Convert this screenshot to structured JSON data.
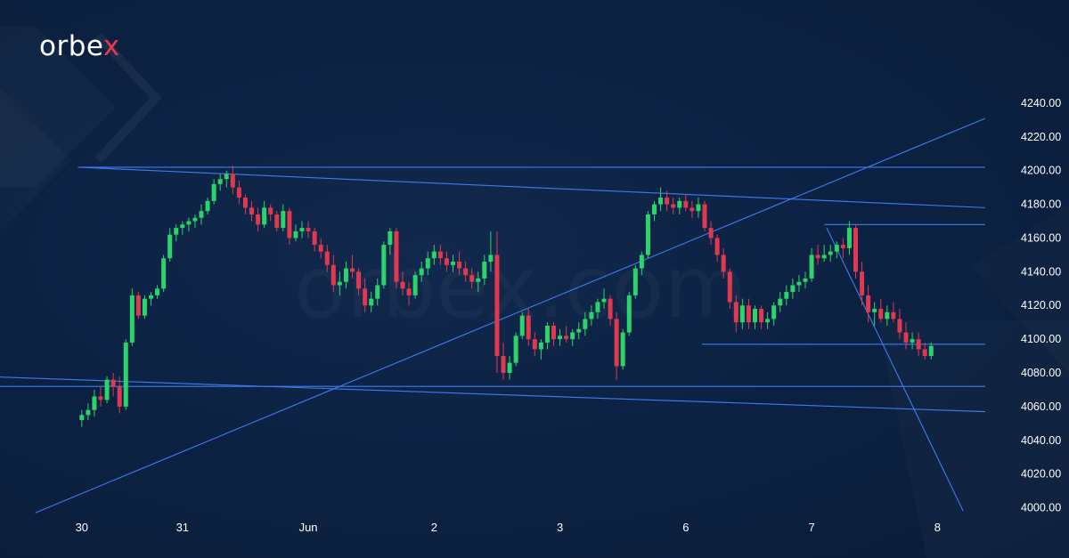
{
  "brand": {
    "prefix": "orbe",
    "x": "x"
  },
  "watermark": "orbex.com",
  "colors": {
    "bull": "#2bd46a",
    "bear": "#e0384e",
    "line": "#3d7cf0",
    "background": "#0b1f3d",
    "text": "#ffffff"
  },
  "chart_data": {
    "type": "candlestick",
    "title": "",
    "xlabel": "",
    "ylabel": "",
    "ylim": [
      3995,
      4250
    ],
    "y_ticks": [
      "4000.00",
      "4020.00",
      "4040.00",
      "4060.00",
      "4080.00",
      "4100.00",
      "4120.00",
      "4140.00",
      "4160.00",
      "4180.00",
      "4200.00",
      "4220.00",
      "4240.00"
    ],
    "x_ticks": [
      {
        "label": "30",
        "bar": 0
      },
      {
        "label": "31",
        "bar": 16
      },
      {
        "label": "Jun",
        "bar": 36
      },
      {
        "label": "2",
        "bar": 56
      },
      {
        "label": "3",
        "bar": 76
      },
      {
        "label": "6",
        "bar": 96
      },
      {
        "label": "7",
        "bar": 116
      },
      {
        "label": "8",
        "bar": 136
      }
    ],
    "x_range": [
      -13,
      147
    ],
    "candles": [
      [
        4052,
        4058,
        4048,
        4055
      ],
      [
        4055,
        4062,
        4052,
        4058
      ],
      [
        4058,
        4070,
        4054,
        4066
      ],
      [
        4066,
        4072,
        4060,
        4064
      ],
      [
        4064,
        4078,
        4062,
        4076
      ],
      [
        4076,
        4080,
        4066,
        4072
      ],
      [
        4072,
        4078,
        4056,
        4060
      ],
      [
        4060,
        4100,
        4058,
        4098
      ],
      [
        4098,
        4130,
        4096,
        4126
      ],
      [
        4126,
        4128,
        4112,
        4114
      ],
      [
        4114,
        4126,
        4112,
        4124
      ],
      [
        4124,
        4128,
        4120,
        4126
      ],
      [
        4126,
        4132,
        4124,
        4130
      ],
      [
        4130,
        4150,
        4128,
        4148
      ],
      [
        4148,
        4166,
        4146,
        4162
      ],
      [
        4162,
        4168,
        4158,
        4166
      ],
      [
        4166,
        4170,
        4162,
        4168
      ],
      [
        4168,
        4172,
        4164,
        4170
      ],
      [
        4170,
        4174,
        4166,
        4172
      ],
      [
        4172,
        4180,
        4168,
        4176
      ],
      [
        4176,
        4184,
        4174,
        4182
      ],
      [
        4182,
        4195,
        4180,
        4192
      ],
      [
        4192,
        4198,
        4188,
        4195
      ],
      [
        4195,
        4200,
        4190,
        4198
      ],
      [
        4198,
        4203,
        4186,
        4190
      ],
      [
        4190,
        4194,
        4180,
        4184
      ],
      [
        4184,
        4186,
        4174,
        4178
      ],
      [
        4178,
        4182,
        4170,
        4174
      ],
      [
        4174,
        4178,
        4164,
        4168
      ],
      [
        4168,
        4182,
        4166,
        4178
      ],
      [
        4178,
        4180,
        4170,
        4174
      ],
      [
        4174,
        4176,
        4164,
        4166
      ],
      [
        4166,
        4180,
        4164,
        4176
      ],
      [
        4176,
        4178,
        4156,
        4160
      ],
      [
        4160,
        4168,
        4158,
        4164
      ],
      [
        4164,
        4170,
        4160,
        4166
      ],
      [
        4166,
        4170,
        4160,
        4164
      ],
      [
        4164,
        4166,
        4152,
        4156
      ],
      [
        4156,
        4160,
        4148,
        4152
      ],
      [
        4152,
        4156,
        4140,
        4144
      ],
      [
        4144,
        4150,
        4128,
        4132
      ],
      [
        4132,
        4140,
        4126,
        4134
      ],
      [
        4134,
        4146,
        4130,
        4142
      ],
      [
        4142,
        4150,
        4136,
        4140
      ],
      [
        4140,
        4142,
        4126,
        4130
      ],
      [
        4130,
        4136,
        4116,
        4120
      ],
      [
        4120,
        4128,
        4116,
        4124
      ],
      [
        4124,
        4136,
        4120,
        4132
      ],
      [
        4132,
        4158,
        4130,
        4156
      ],
      [
        4156,
        4166,
        4150,
        4164
      ],
      [
        4164,
        4166,
        4130,
        4134
      ],
      [
        4134,
        4140,
        4126,
        4130
      ],
      [
        4130,
        4134,
        4120,
        4126
      ],
      [
        4126,
        4140,
        4124,
        4138
      ],
      [
        4138,
        4146,
        4134,
        4142
      ],
      [
        4142,
        4152,
        4138,
        4148
      ],
      [
        4148,
        4156,
        4144,
        4152
      ],
      [
        4152,
        4156,
        4144,
        4148
      ],
      [
        4148,
        4152,
        4140,
        4144
      ],
      [
        4144,
        4150,
        4140,
        4146
      ],
      [
        4146,
        4152,
        4138,
        4142
      ],
      [
        4142,
        4146,
        4134,
        4138
      ],
      [
        4138,
        4142,
        4130,
        4134
      ],
      [
        4134,
        4140,
        4128,
        4136
      ],
      [
        4136,
        4150,
        4132,
        4146
      ],
      [
        4146,
        4164,
        4140,
        4150
      ],
      [
        4150,
        4164,
        4080,
        4090
      ],
      [
        4090,
        4098,
        4076,
        4080
      ],
      [
        4080,
        4090,
        4076,
        4086
      ],
      [
        4086,
        4104,
        4084,
        4102
      ],
      [
        4102,
        4116,
        4100,
        4114
      ],
      [
        4114,
        4118,
        4096,
        4100
      ],
      [
        4100,
        4104,
        4090,
        4094
      ],
      [
        4094,
        4100,
        4088,
        4098
      ],
      [
        4098,
        4110,
        4094,
        4108
      ],
      [
        4108,
        4110,
        4096,
        4100
      ],
      [
        4100,
        4106,
        4096,
        4102
      ],
      [
        4102,
        4108,
        4098,
        4100
      ],
      [
        4100,
        4106,
        4096,
        4104
      ],
      [
        4104,
        4110,
        4100,
        4106
      ],
      [
        4106,
        4116,
        4102,
        4112
      ],
      [
        4112,
        4120,
        4108,
        4116
      ],
      [
        4116,
        4124,
        4112,
        4122
      ],
      [
        4122,
        4130,
        4118,
        4124
      ],
      [
        4124,
        4126,
        4108,
        4112
      ],
      [
        4112,
        4116,
        4076,
        4084
      ],
      [
        4084,
        4106,
        4082,
        4104
      ],
      [
        4104,
        4128,
        4102,
        4126
      ],
      [
        4126,
        4144,
        4124,
        4142
      ],
      [
        4142,
        4152,
        4138,
        4150
      ],
      [
        4150,
        4176,
        4148,
        4174
      ],
      [
        4174,
        4182,
        4170,
        4180
      ],
      [
        4180,
        4190,
        4176,
        4184
      ],
      [
        4184,
        4188,
        4176,
        4180
      ],
      [
        4180,
        4184,
        4174,
        4178
      ],
      [
        4178,
        4184,
        4174,
        4182
      ],
      [
        4182,
        4186,
        4176,
        4178
      ],
      [
        4178,
        4182,
        4172,
        4176
      ],
      [
        4176,
        4184,
        4172,
        4180
      ],
      [
        4180,
        4182,
        4164,
        4166
      ],
      [
        4166,
        4170,
        4156,
        4160
      ],
      [
        4160,
        4162,
        4146,
        4150
      ],
      [
        4150,
        4154,
        4136,
        4140
      ],
      [
        4140,
        4142,
        4118,
        4122
      ],
      [
        4122,
        4126,
        4104,
        4110
      ],
      [
        4110,
        4124,
        4106,
        4120
      ],
      [
        4120,
        4124,
        4106,
        4110
      ],
      [
        4110,
        4120,
        4106,
        4118
      ],
      [
        4118,
        4120,
        4106,
        4110
      ],
      [
        4110,
        4116,
        4106,
        4112
      ],
      [
        4112,
        4122,
        4108,
        4120
      ],
      [
        4120,
        4128,
        4116,
        4124
      ],
      [
        4124,
        4132,
        4120,
        4128
      ],
      [
        4128,
        4136,
        4124,
        4132
      ],
      [
        4132,
        4138,
        4128,
        4134
      ],
      [
        4134,
        4140,
        4130,
        4136
      ],
      [
        4136,
        4154,
        4134,
        4150
      ],
      [
        4150,
        4156,
        4144,
        4148
      ],
      [
        4148,
        4156,
        4146,
        4150
      ],
      [
        4150,
        4156,
        4146,
        4152
      ],
      [
        4152,
        4158,
        4148,
        4156
      ],
      [
        4156,
        4160,
        4148,
        4154
      ],
      [
        4154,
        4170,
        4150,
        4166
      ],
      [
        4166,
        4168,
        4136,
        4140
      ],
      [
        4140,
        4146,
        4120,
        4126
      ],
      [
        4126,
        4132,
        4110,
        4116
      ],
      [
        4116,
        4122,
        4108,
        4118
      ],
      [
        4118,
        4124,
        4110,
        4112
      ],
      [
        4112,
        4120,
        4108,
        4116
      ],
      [
        4116,
        4122,
        4110,
        4112
      ],
      [
        4112,
        4118,
        4100,
        4104
      ],
      [
        4104,
        4110,
        4094,
        4098
      ],
      [
        4098,
        4104,
        4094,
        4100
      ],
      [
        4100,
        4104,
        4090,
        4094
      ],
      [
        4094,
        4098,
        4088,
        4090
      ],
      [
        4090,
        4098,
        4088,
        4096
      ]
    ],
    "lines": [
      {
        "name": "rising-support",
        "points": [
          [
            -7.4,
            3997
          ],
          [
            143.6,
            4231
          ]
        ]
      },
      {
        "name": "upper-resistance",
        "points": [
          [
            -0.6,
            4202
          ],
          [
            143.6,
            4202
          ]
        ]
      },
      {
        "name": "descending-resistance",
        "points": [
          [
            -0.6,
            4202
          ],
          [
            143.6,
            4178
          ]
        ]
      },
      {
        "name": "lower-channel",
        "points": [
          [
            -16.7,
            4078
          ],
          [
            143.6,
            4057
          ]
        ]
      },
      {
        "name": "double-bottom-support",
        "points": [
          [
            -17.3,
            4072
          ],
          [
            143.6,
            4072
          ]
        ]
      },
      {
        "name": "gap-resistance",
        "points": [
          [
            118.0,
            4168
          ],
          [
            143.6,
            4168
          ]
        ]
      },
      {
        "name": "range-low",
        "points": [
          [
            98.6,
            4097
          ],
          [
            143.6,
            4097
          ]
        ]
      },
      {
        "name": "falling-trendline",
        "points": [
          [
            118.4,
            4166
          ],
          [
            140.1,
            3998
          ]
        ]
      }
    ]
  }
}
